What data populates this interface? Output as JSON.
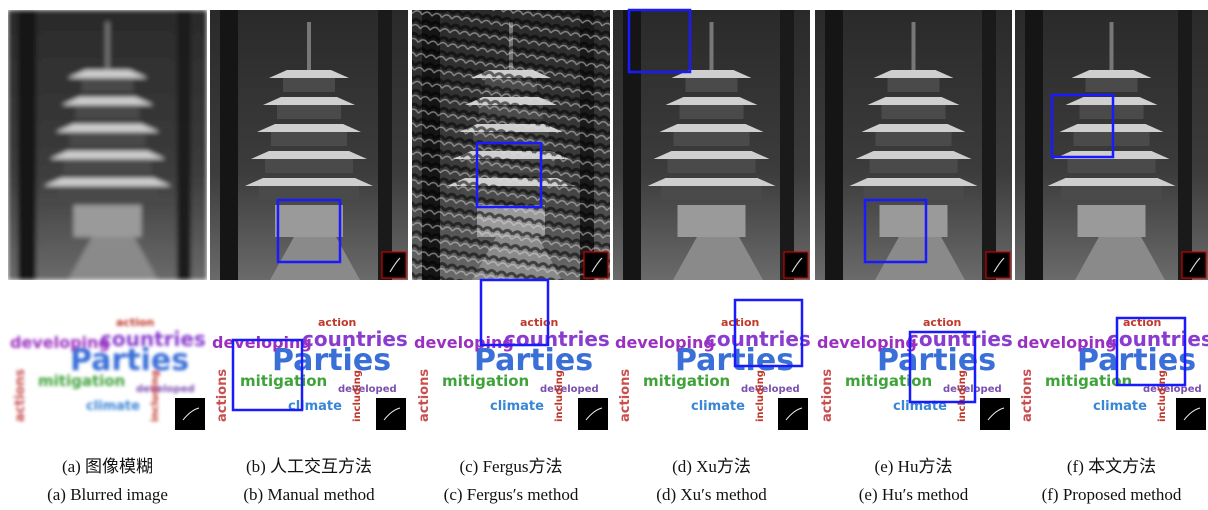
{
  "panels": [
    {
      "caption_zh": "(a) 图像模糊",
      "caption_en": "(a) Blurred image"
    },
    {
      "caption_zh": "(b) 人工交互方法",
      "caption_en": "(b) Manual method"
    },
    {
      "caption_zh": "(c) Fergus方法",
      "caption_en": "(c) Fergus′s method"
    },
    {
      "caption_zh": "(d) Xu方法",
      "caption_en": "(d) Xu′s method"
    },
    {
      "caption_zh": "(e) Hu方法",
      "caption_en": "(e) Hu′s method"
    },
    {
      "caption_zh": "(f) 本文方法",
      "caption_en": "(f) Proposed method"
    }
  ],
  "wordcloud": {
    "words": [
      "Parties",
      "countries",
      "developing",
      "mitigation",
      "climate",
      "action",
      "actions",
      "developed",
      "including"
    ]
  }
}
